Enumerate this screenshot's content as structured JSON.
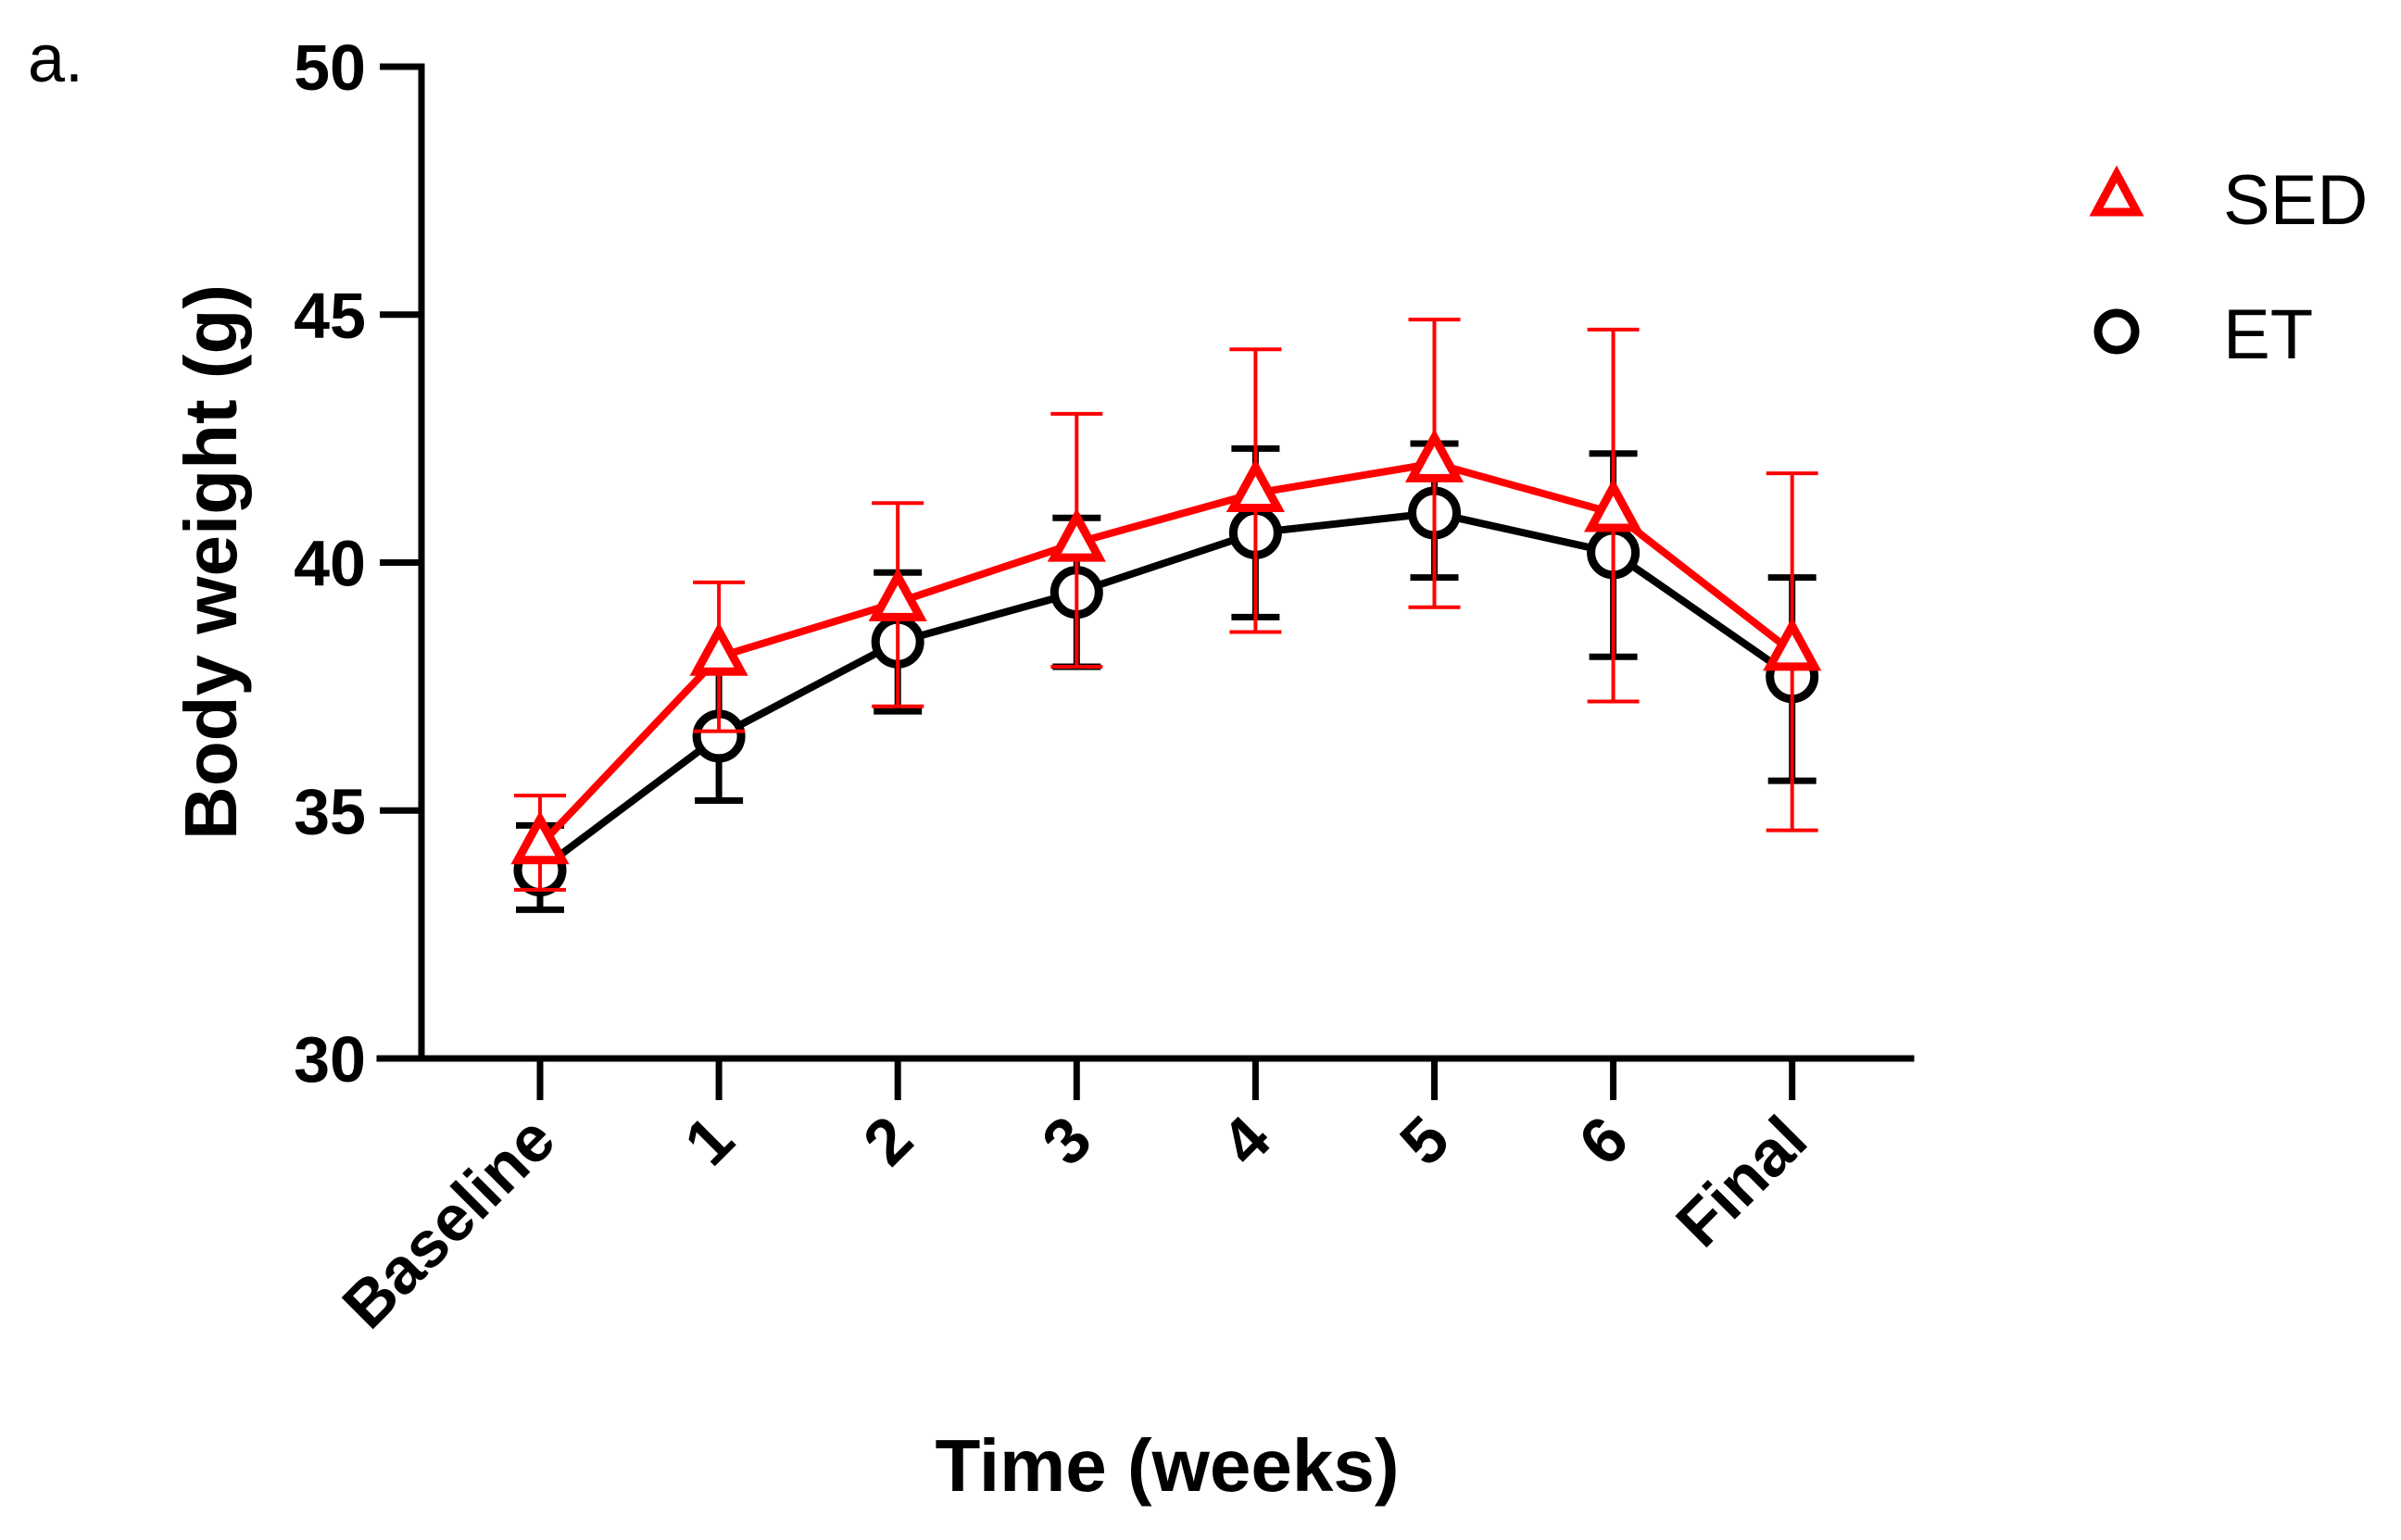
{
  "panel_label": "a.",
  "chart_data": {
    "type": "line",
    "title": "",
    "xlabel": "Time (weeks)",
    "ylabel": "Body weight (g)",
    "ylim": [
      30,
      50
    ],
    "yticks": [
      30,
      35,
      40,
      45,
      50
    ],
    "categories": [
      "Baseline",
      "1",
      "2",
      "3",
      "4",
      "5",
      "6",
      "Final"
    ],
    "legend_position": "top-right",
    "series": [
      {
        "name": "SED",
        "color": "#ff0000",
        "marker": "triangle",
        "values": [
          34.3,
          38.1,
          39.2,
          40.4,
          41.4,
          42.0,
          41.0,
          38.2
        ],
        "err_low": [
          33.4,
          36.6,
          37.1,
          37.9,
          38.6,
          39.1,
          37.2,
          34.6
        ],
        "err_high": [
          35.3,
          39.6,
          41.2,
          43.0,
          44.3,
          44.9,
          44.7,
          41.8
        ]
      },
      {
        "name": "ET",
        "color": "#000000",
        "marker": "circle",
        "values": [
          33.8,
          36.5,
          38.4,
          39.4,
          40.6,
          41.0,
          40.2,
          37.7
        ],
        "err_low": [
          33.0,
          35.2,
          37.0,
          37.9,
          38.9,
          39.7,
          38.1,
          35.6
        ],
        "err_high": [
          34.7,
          37.8,
          39.8,
          40.9,
          42.3,
          42.4,
          42.2,
          39.7
        ]
      }
    ]
  }
}
